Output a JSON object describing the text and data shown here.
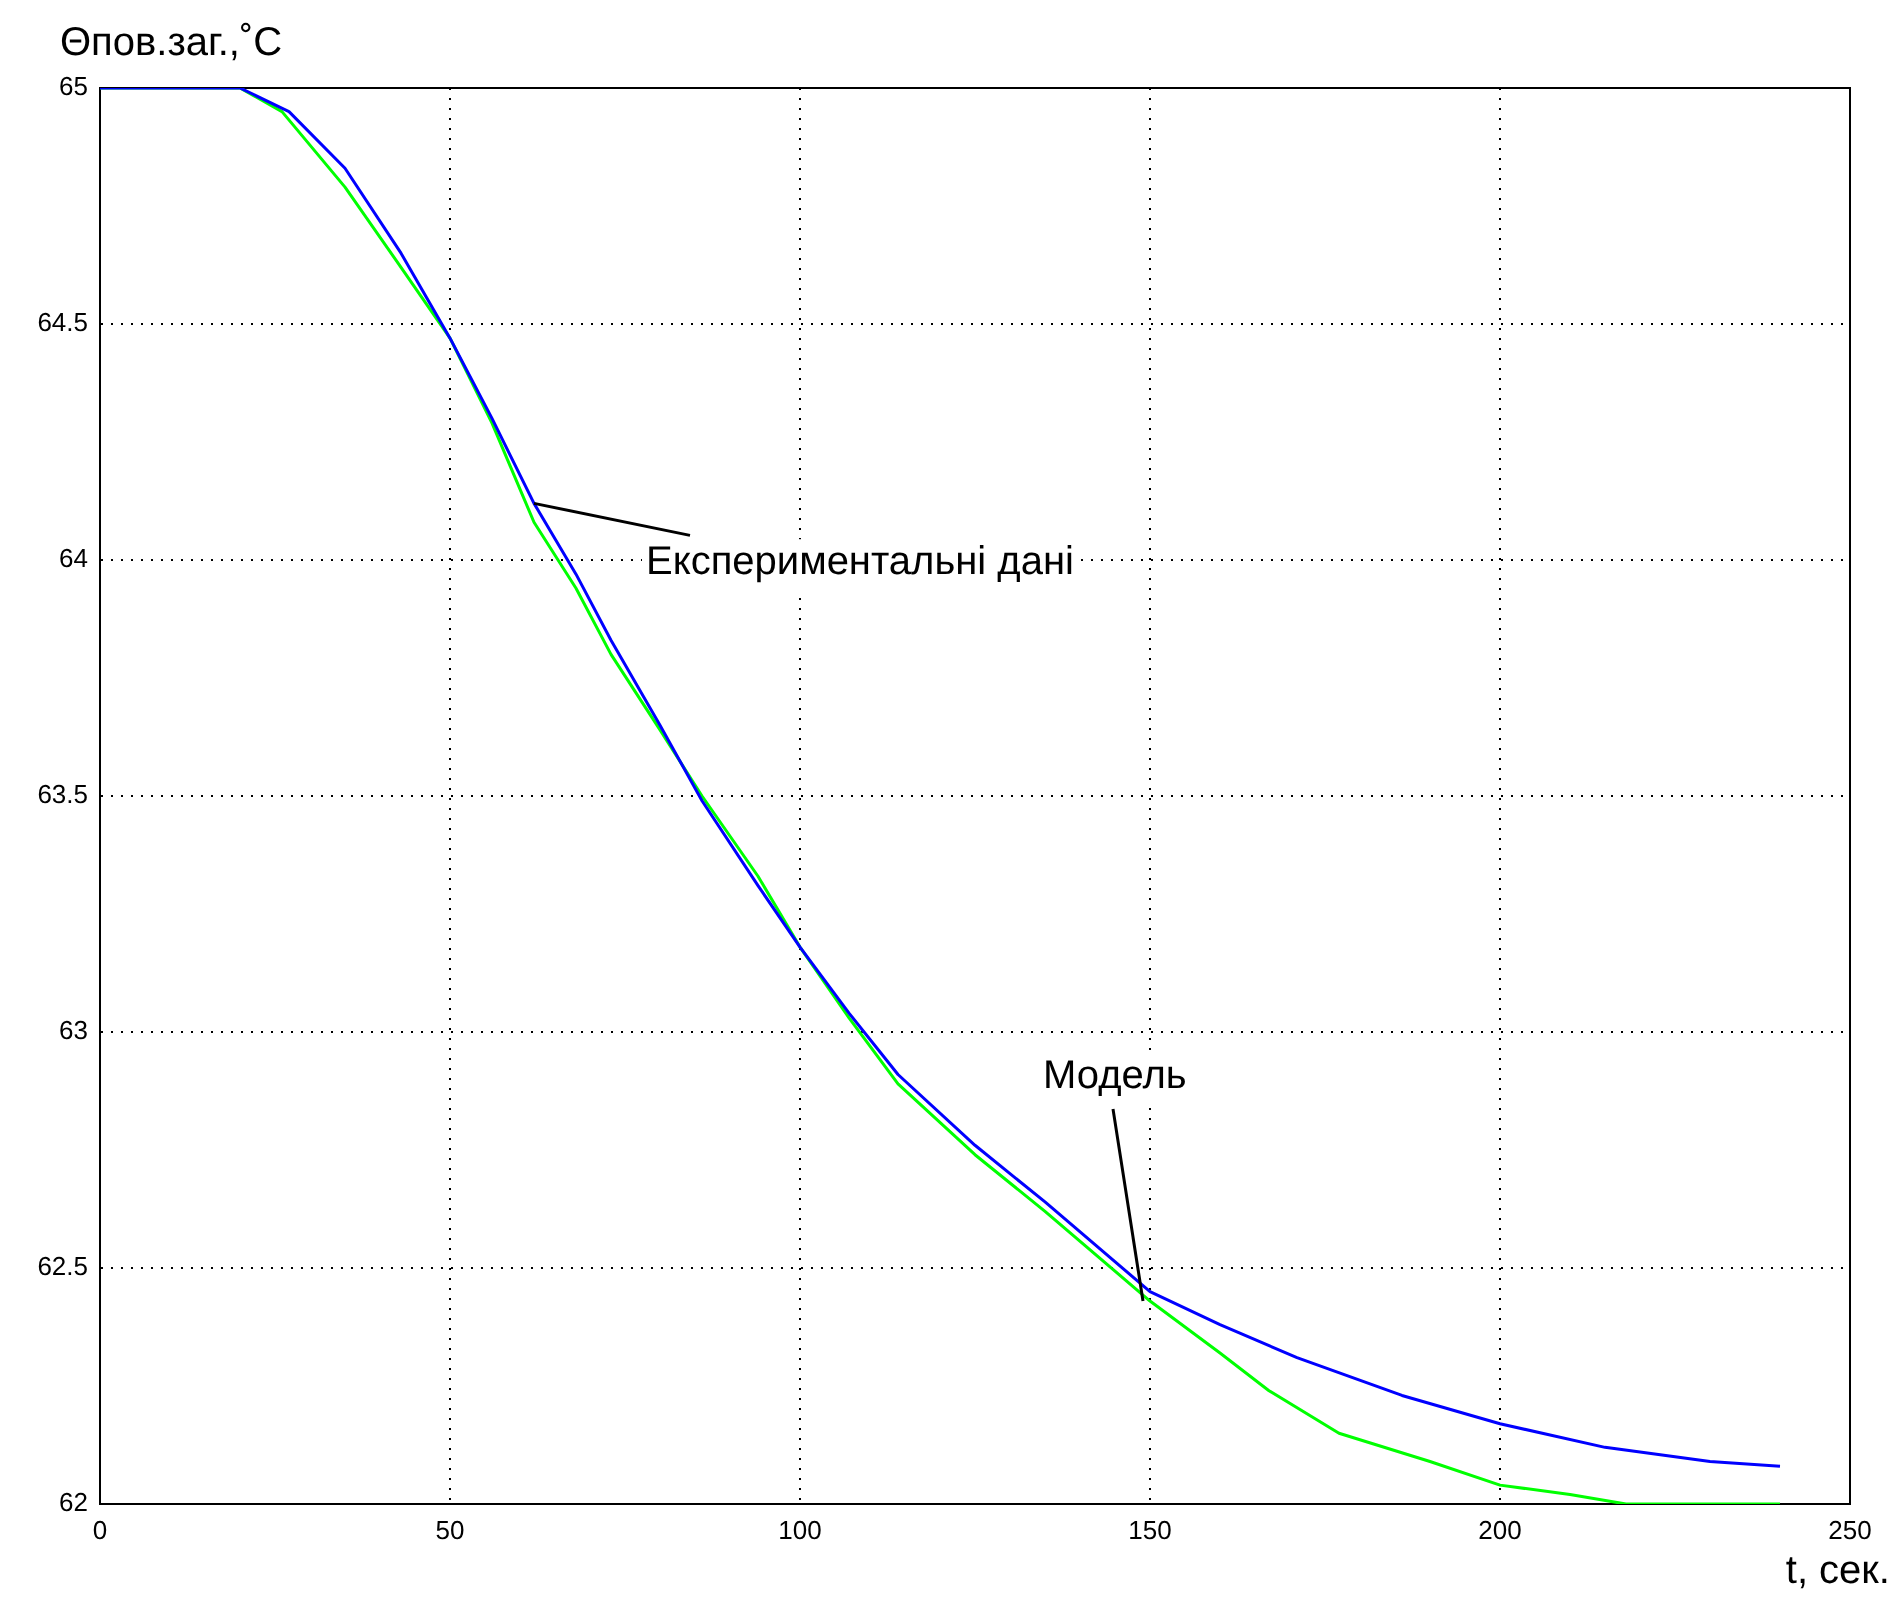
{
  "chart_data": {
    "type": "line",
    "xlabel": "t, сек.",
    "ylabel": "Θпов.заг.,˚C",
    "xlim": [
      0,
      250
    ],
    "xticks": [
      0,
      50,
      100,
      150,
      200,
      250
    ],
    "ylim": [
      62,
      65
    ],
    "yticks": [
      62,
      62.5,
      63,
      63.5,
      64,
      64.5,
      65
    ],
    "grid": true,
    "line_style": "solid",
    "marker": "none",
    "series": [
      {
        "color": "#0000ff",
        "x": [
          0,
          20,
          27,
          35,
          43,
          50,
          56,
          62,
          68,
          73,
          80,
          86,
          94,
          100,
          107,
          114,
          125,
          135,
          150,
          160,
          171,
          186,
          200,
          215,
          230,
          240
        ],
        "values": [
          65,
          65,
          64.95,
          64.83,
          64.65,
          64.47,
          64.3,
          64.12,
          63.97,
          63.83,
          63.65,
          63.49,
          63.31,
          63.18,
          63.04,
          62.91,
          62.76,
          62.64,
          62.45,
          62.38,
          62.31,
          62.23,
          62.17,
          62.12,
          62.09,
          62.08
        ]
      },
      {
        "color": "#00ff00",
        "x": [
          0,
          20,
          26,
          35,
          43,
          50,
          56,
          62,
          68,
          73,
          80,
          86,
          94,
          100,
          107,
          114,
          125,
          135,
          150,
          160,
          167,
          177,
          190,
          200,
          210,
          218,
          240
        ],
        "values": [
          65,
          65,
          64.95,
          64.79,
          64.62,
          64.47,
          64.29,
          64.08,
          63.94,
          63.8,
          63.64,
          63.5,
          63.33,
          63.18,
          63.03,
          62.89,
          62.74,
          62.62,
          62.43,
          62.32,
          62.24,
          62.15,
          62.09,
          62.04,
          62.02,
          62,
          62
        ]
      }
    ],
    "annotations": [
      {
        "text": "Експериментальні дані",
        "x": 62,
        "y": 64.12
      },
      {
        "text": "Модель",
        "x": 149,
        "y": 62.43
      }
    ]
  }
}
